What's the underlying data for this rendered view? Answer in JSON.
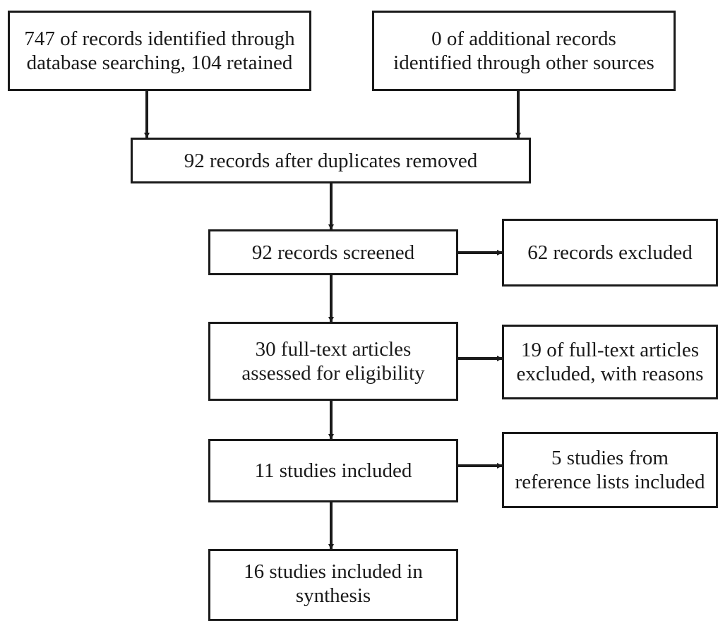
{
  "flowchart": {
    "boxes": {
      "db_search": "747 of records identified through\ndatabase searching, 104 retained",
      "other_sources": "0 of additional records\nidentified through other sources",
      "after_duplicates": "92 records after duplicates removed",
      "screened": "92 records screened",
      "excluded": "62 records excluded",
      "fulltext_assessed": "30 full-text articles\nassessed for eligibility",
      "fulltext_excluded": "19 of full-text articles\nexcluded, with reasons",
      "studies_included": "11 studies included",
      "reference_lists": "5 studies from\nreference lists included",
      "synthesis": "16 studies included in\nsynthesis"
    },
    "connections": [
      {
        "from": "db_search",
        "to": "after_duplicates"
      },
      {
        "from": "other_sources",
        "to": "after_duplicates"
      },
      {
        "from": "after_duplicates",
        "to": "screened"
      },
      {
        "from": "screened",
        "to": "excluded"
      },
      {
        "from": "screened",
        "to": "fulltext_assessed"
      },
      {
        "from": "fulltext_assessed",
        "to": "fulltext_excluded"
      },
      {
        "from": "fulltext_assessed",
        "to": "studies_included"
      },
      {
        "from": "studies_included",
        "to": "reference_lists"
      },
      {
        "from": "studies_included",
        "to": "synthesis"
      }
    ]
  }
}
